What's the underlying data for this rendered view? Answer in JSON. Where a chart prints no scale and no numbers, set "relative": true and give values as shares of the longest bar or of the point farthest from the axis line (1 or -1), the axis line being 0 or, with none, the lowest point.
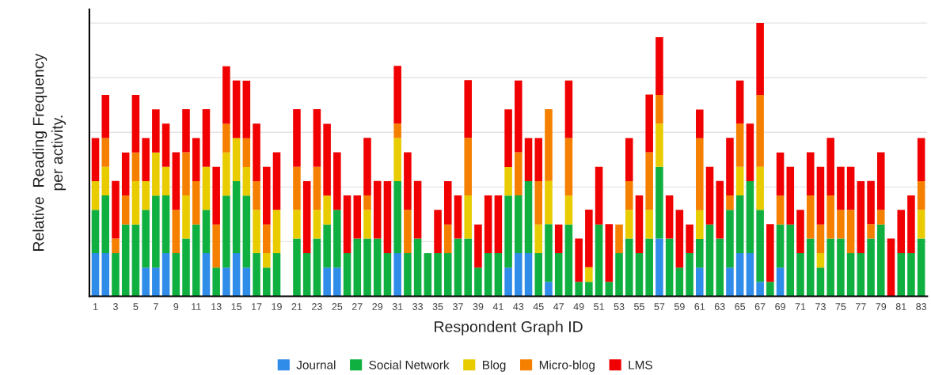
{
  "chart_data": {
    "type": "bar",
    "stacked": true,
    "relative": true,
    "grid": "y",
    "legend": "bottom",
    "xlabel": "Respondent Graph ID",
    "ylabel": "Relative  Reading Frequency\nper activity.",
    "categories": [
      "1",
      null,
      "3",
      null,
      "5",
      null,
      "7",
      null,
      "9",
      null,
      "11",
      null,
      "13",
      null,
      "15",
      null,
      "17",
      null,
      "19",
      null,
      "21",
      null,
      "23",
      null,
      "25",
      null,
      "27",
      null,
      "29",
      null,
      "31",
      null,
      "33",
      null,
      "35",
      null,
      "37",
      null,
      "39",
      null,
      "41",
      null,
      "43",
      null,
      "45",
      null,
      "47",
      null,
      "49",
      null,
      "51",
      null,
      "53",
      null,
      "55",
      null,
      "57",
      null,
      "59",
      null,
      "61",
      null,
      "63",
      null,
      "65",
      null,
      "67",
      null,
      "69",
      null,
      "71",
      null,
      "73",
      null,
      "75",
      null,
      "77",
      null,
      "79",
      null,
      "81",
      null,
      "83"
    ],
    "series": [
      {
        "name": "Journal",
        "color": "#2f8ce8",
        "values": [
          0.158,
          0.158,
          0,
          0,
          0,
          0.105,
          0.105,
          0.158,
          0,
          0,
          0,
          0.158,
          0,
          0.105,
          0.158,
          0.105,
          0,
          0,
          0,
          0,
          0,
          0,
          0,
          0.105,
          0.105,
          0,
          0,
          0,
          0,
          0,
          0.158,
          0,
          0,
          0,
          0,
          0,
          0,
          0,
          0,
          0,
          0,
          0.105,
          0.158,
          0.158,
          0,
          0.053,
          0,
          0,
          0,
          0,
          0,
          0,
          0,
          0,
          0,
          0,
          0.211,
          0,
          0,
          0,
          0.105,
          0,
          0,
          0.105,
          0.158,
          0.158,
          0.053,
          0,
          0.105,
          0,
          0,
          0,
          0,
          0,
          0,
          0,
          0,
          0,
          0,
          0,
          0,
          0,
          0
        ]
      },
      {
        "name": "Social Network",
        "color": "#10b040",
        "values": [
          0.158,
          0.211,
          0.158,
          0.263,
          0.263,
          0.211,
          0.263,
          0.211,
          0.158,
          0.211,
          0.263,
          0.158,
          0.105,
          0.263,
          0.263,
          0.263,
          0.158,
          0.105,
          0.158,
          0,
          0.211,
          0.158,
          0.211,
          0.158,
          0.211,
          0.158,
          0.211,
          0.211,
          0.211,
          0.158,
          0.263,
          0.158,
          0.211,
          0.158,
          0.158,
          0.158,
          0.211,
          0.211,
          0.105,
          0.158,
          0.158,
          0.263,
          0.211,
          0.263,
          0.158,
          0.211,
          0.158,
          0.263,
          0.053,
          0.053,
          0.263,
          0.053,
          0.158,
          0.211,
          0.158,
          0.211,
          0.263,
          0.211,
          0.105,
          0.158,
          0.105,
          0.263,
          0.211,
          0.211,
          0.211,
          0.263,
          0.263,
          0.053,
          0.158,
          0.263,
          0.158,
          0.211,
          0.105,
          0.211,
          0.211,
          0.158,
          0.158,
          0.211,
          0.263,
          0,
          0.158,
          0.158,
          0.211
        ]
      },
      {
        "name": "Blog",
        "color": "#e8cc00",
        "values": [
          0.105,
          0.105,
          0,
          0,
          0.158,
          0.105,
          0.158,
          0.105,
          0,
          0.158,
          0,
          0.158,
          0,
          0.158,
          0.158,
          0.105,
          0.158,
          0.053,
          0.158,
          0,
          0.105,
          0,
          0.105,
          0.105,
          0,
          0,
          0,
          0.105,
          0,
          0,
          0.158,
          0,
          0,
          0,
          0,
          0,
          0,
          0.158,
          0,
          0,
          0,
          0.105,
          0,
          0,
          0.105,
          0.158,
          0,
          0.105,
          0,
          0.053,
          0,
          0,
          0,
          0.105,
          0,
          0.105,
          0.158,
          0,
          0,
          0,
          0.105,
          0,
          0,
          0,
          0.105,
          0,
          0.158,
          0,
          0,
          0,
          0,
          0,
          0.053,
          0,
          0,
          0,
          0,
          0,
          0,
          0,
          0,
          0,
          0.105
        ]
      },
      {
        "name": "Micro-blog",
        "color": "#f58000",
        "values": [
          0,
          0.105,
          0.053,
          0.105,
          0.105,
          0,
          0,
          0,
          0.158,
          0.158,
          0.158,
          0,
          0.158,
          0.105,
          0,
          0.105,
          0.105,
          0.105,
          0,
          0,
          0.158,
          0,
          0.158,
          0,
          0,
          0,
          0,
          0.053,
          0,
          0,
          0.053,
          0.158,
          0,
          0,
          0,
          0.105,
          0,
          0.211,
          0,
          0,
          0,
          0,
          0.158,
          0,
          0.158,
          0.263,
          0,
          0.211,
          0,
          0,
          0,
          0,
          0.105,
          0.105,
          0,
          0.211,
          0.105,
          0,
          0,
          0,
          0.263,
          0,
          0,
          0.053,
          0.158,
          0,
          0.263,
          0,
          0.105,
          0,
          0,
          0.158,
          0.105,
          0.158,
          0.105,
          0.158,
          0,
          0.053,
          0.053,
          0,
          0,
          0,
          0.105
        ]
      },
      {
        "name": "LMS",
        "color": "#f00000",
        "values": [
          0.158,
          0.158,
          0.211,
          0.158,
          0.211,
          0.158,
          0.158,
          0.158,
          0.211,
          0.158,
          0.158,
          0.211,
          0.211,
          0.211,
          0.211,
          0.211,
          0.211,
          0.211,
          0.211,
          0,
          0.211,
          0.263,
          0.211,
          0.263,
          0.211,
          0.211,
          0.158,
          0.211,
          0.211,
          0.263,
          0.211,
          0.211,
          0.211,
          0,
          0.158,
          0.158,
          0.158,
          0.211,
          0.158,
          0.211,
          0.211,
          0.211,
          0.263,
          0.158,
          0.158,
          0,
          0.105,
          0.211,
          0.158,
          0.211,
          0.211,
          0.211,
          0,
          0.158,
          0.211,
          0.211,
          0.211,
          0.158,
          0.211,
          0.105,
          0.105,
          0.211,
          0.211,
          0.211,
          0.158,
          0.211,
          0.263,
          0.211,
          0.158,
          0.211,
          0.158,
          0.158,
          0.211,
          0.211,
          0.158,
          0.158,
          0.263,
          0.158,
          0.211,
          0.211,
          0.158,
          0.211,
          0.158
        ]
      }
    ]
  }
}
